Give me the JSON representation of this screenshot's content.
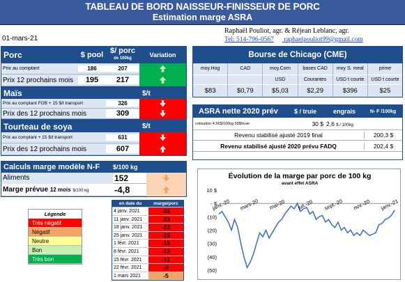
{
  "header": {
    "title": "TABLEAU DE BORD NAISSEUR-FINISSEUR DE PORC",
    "subtitle": "Estimation marge ASRA"
  },
  "date": "01-mars-21",
  "authors": "Raphaël Pouliot, agr.   &   Réjean Leblanc, agr.",
  "contact": {
    "tel": "Tel:   514-796-0567",
    "email": "raphaelpouliot99@gmail.com"
  },
  "porc": {
    "title": "Porc",
    "col1": "$ pool",
    "col2": "$/ porc",
    "col2b": "de 100kg",
    "col3": "Variation",
    "rows": [
      {
        "label": "Prix au comptant",
        "v1": "186",
        "v2": "207",
        "dir": "up"
      },
      {
        "label": "Prix 12 prochains mois",
        "v1": "195",
        "v2": "217",
        "dir": "up"
      }
    ]
  },
  "mais": {
    "title": "Maïs",
    "unit": "$/t",
    "rows": [
      {
        "label": "Prix au comptant  FOB + 15 $/t transport",
        "v": "326",
        "dir": "down"
      },
      {
        "label": "Prix des 12 prochains mois",
        "v": "309",
        "dir": "down"
      }
    ]
  },
  "tourteau": {
    "title": "Tourteau de soya",
    "unit": "$/t",
    "rows": [
      {
        "label": "Prix au comptant  + 15 $/t transport",
        "v": "631",
        "dir": "down"
      },
      {
        "label": "Prix des 12 prochains mois",
        "v": "607",
        "dir": "up"
      }
    ]
  },
  "calculs": {
    "title": "Calculs marge  modèle N-F",
    "unit": "$/100 kg",
    "aliments_label": "Aliments",
    "aliments": "152",
    "marge_label": "Marge prévue",
    "marge_sub": "12 mois",
    "marge_unit": "$/100 kg",
    "marge": "-4,8"
  },
  "legend": {
    "title": "Légende",
    "items": [
      {
        "label": "Très négatif",
        "color": "#ff0000"
      },
      {
        "label": "Négatif",
        "color": "#f4a460"
      },
      {
        "label": "Neutre",
        "color": "#ffff99"
      },
      {
        "label": "Bon",
        "color": "#c6efb0"
      },
      {
        "label": "Très bon",
        "color": "#00b050"
      }
    ]
  },
  "margin_table": {
    "col1": "en date du",
    "col2": "marge/porc",
    "rows": [
      {
        "date": "4 janv. 2021",
        "value": "-24",
        "color": "#ff0000"
      },
      {
        "date": "11 janv. 2021",
        "value": "-23",
        "color": "#ff0000"
      },
      {
        "date": "18 janv. 2021",
        "value": "-22",
        "color": "#ff0000"
      },
      {
        "date": "25 janv. 2021",
        "value": "-15",
        "color": "#ff0000"
      },
      {
        "date": "1 févr. 2021",
        "value": "-15",
        "color": "#ff0000"
      },
      {
        "date": "8 févr. 2021",
        "value": "-12",
        "color": "#ff0000"
      },
      {
        "date": "15 févr. 2021",
        "value": "-11",
        "color": "#ff0000"
      },
      {
        "date": "22 févr. 2021",
        "value": "-9",
        "color": "#ff0000"
      },
      {
        "date": "1 mars 2021",
        "value": "-5",
        "color": "#f4a460"
      }
    ]
  },
  "chicago": {
    "title": "Bourse de Chicago (CME)",
    "cols": [
      {
        "h": "moy.Hog",
        "u": "",
        "v": "$83"
      },
      {
        "h": "CAD",
        "u": "",
        "v": "$0,79"
      },
      {
        "h": "moy.Corn",
        "u": "USD",
        "v": "$5,03"
      },
      {
        "h": "bases CAD",
        "u": "Courantes",
        "v": "$2,29"
      },
      {
        "h": "moy S. meal",
        "u": "USD t courte",
        "v": "$396"
      },
      {
        "h": "prime",
        "u": "USD t courte",
        "v": "$25"
      }
    ]
  },
  "asra": {
    "title": "ASRA nette 2020 prév",
    "col1": "$ / truie",
    "col2": "engrais",
    "col3": "N- F /100kg",
    "cotisation": "cotisation 4,56$/100kg  59$/truie",
    "truie": "30 $",
    "engrais": "2,6",
    "engrais_unit": "$ / 100kg",
    "rev2019_label": "Revenu stabilisé ajusté 2019 final",
    "rev2019": "200,3 $",
    "rev2020_label": "Revenu stabilisé ajusté 2020 prévu FADQ",
    "rev2020": "202,4 $"
  },
  "chart_data": {
    "type": "line",
    "title": "Évolution de la marge par porc de 100 kg",
    "subtitle": "avant effet ASRA",
    "ylim": [
      -50,
      10
    ],
    "yticks": [
      "10 $",
      "- $",
      "(10)",
      "(20)",
      "(30)",
      "(40)",
      "(50)"
    ],
    "xticks": [
      "janv.-20",
      "mars-20",
      "mai-20",
      "juil.-20",
      "sept.-20",
      "nov.-20",
      "janv.-21"
    ],
    "series": [
      {
        "values": [
          -8,
          -6,
          -10,
          -14,
          -20,
          -12,
          -18,
          -30,
          -40,
          -48,
          -44,
          -38,
          -30,
          -22,
          -25,
          -20,
          -26,
          -22,
          -18,
          -14,
          -12,
          -8,
          -5,
          -2,
          -4,
          0,
          -6,
          -4,
          -3,
          -8,
          -6,
          -12,
          -10,
          -9,
          -14,
          -12,
          -16,
          -18,
          -14,
          -20,
          -18,
          -22,
          -20,
          -24,
          -22,
          -24,
          -20,
          -22,
          -24,
          -23,
          -22,
          -16,
          -15,
          -12,
          -11,
          -9,
          -5
        ]
      }
    ]
  }
}
